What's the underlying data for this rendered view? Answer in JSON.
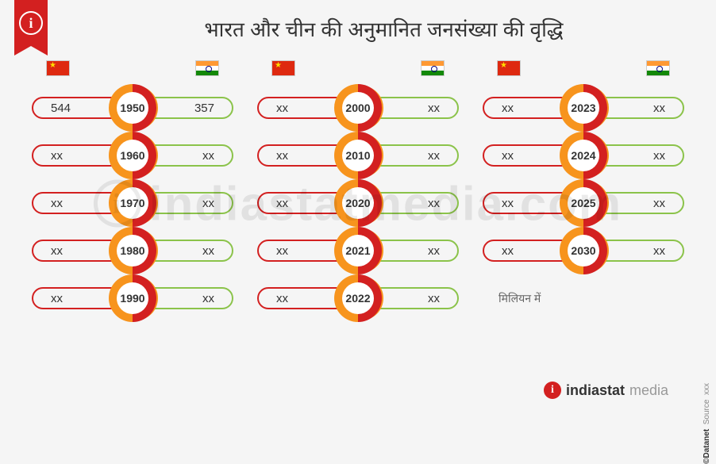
{
  "title": "भारत और चीन की अनुमानित जनसंख्या की वृद्धि",
  "unit_note": "मिलियन में",
  "colors": {
    "china_border": "#d32020",
    "india_border": "#8bc34a",
    "ring_left": "#d32020",
    "ring_right": "#f7941d",
    "background": "#f5f5f5",
    "text": "#333333"
  },
  "flags": {
    "left": "china",
    "right": "india"
  },
  "columns": [
    {
      "rows": [
        {
          "year": "1950",
          "china": "544",
          "india": "357"
        },
        {
          "year": "1960",
          "china": "xx",
          "india": "xx"
        },
        {
          "year": "1970",
          "china": "xx",
          "india": "xx"
        },
        {
          "year": "1980",
          "china": "xx",
          "india": "xx"
        },
        {
          "year": "1990",
          "china": "xx",
          "india": "xx"
        }
      ]
    },
    {
      "rows": [
        {
          "year": "2000",
          "china": "xx",
          "india": "xx"
        },
        {
          "year": "2010",
          "china": "xx",
          "india": "xx"
        },
        {
          "year": "2020",
          "china": "xx",
          "india": "xx"
        },
        {
          "year": "2021",
          "china": "xx",
          "india": "xx"
        },
        {
          "year": "2022",
          "china": "xx",
          "india": "xx"
        }
      ]
    },
    {
      "rows": [
        {
          "year": "2023",
          "china": "xx",
          "india": "xx"
        },
        {
          "year": "2024",
          "china": "xx",
          "india": "xx"
        },
        {
          "year": "2025",
          "china": "xx",
          "india": "xx"
        },
        {
          "year": "2030",
          "china": "xx",
          "india": "xx"
        }
      ],
      "note_after": true
    }
  ],
  "watermark": "indiastatmedia.com",
  "footer_brand": {
    "main": "indiastat",
    "suffix": "media"
  },
  "side_credit": {
    "label": "©Datanet",
    "source_label": "Source",
    "source_value": "xxx"
  }
}
